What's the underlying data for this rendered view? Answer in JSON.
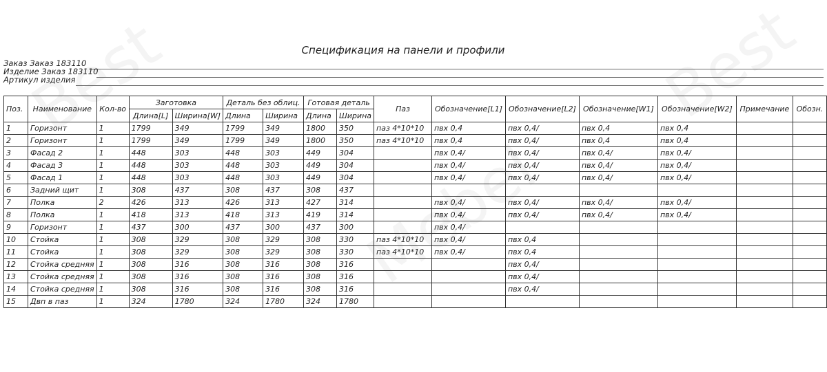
{
  "title": "Спецификация на панели и профили",
  "meta": {
    "order": "Заказ Заказ 183110",
    "product": "Изделие Заказ 183110",
    "article": "Артикул изделия"
  },
  "watermark": "BestMebel мебель по вашим идеям",
  "headers": {
    "pos": "Поз.",
    "name": "Наименование",
    "qty": "Кол-во",
    "blank": "Заготовка",
    "blank_len": "Длина[L]",
    "blank_wid": "Ширина[W]",
    "detail": "Деталь без облиц.",
    "detail_len": "Длина",
    "detail_wid": "Ширина",
    "finished": "Готовая деталь",
    "fin_len": "Длина",
    "fin_wid": "Ширина",
    "groove": "Паз",
    "l1": "Обозначение[L1]",
    "l2": "Обозначение[L2]",
    "w1": "Обозначение[W1]",
    "w2": "Обозначение[W2]",
    "note": "Примечание",
    "desig": "Обозн."
  },
  "rows": [
    [
      "1",
      "Горизонт",
      "1",
      "1799",
      "349",
      "1799",
      "349",
      "1800",
      "350",
      "паз 4*10*10",
      "пвх 0,4",
      "пвх 0,4/",
      "пвх 0,4",
      "пвх 0,4",
      "",
      ""
    ],
    [
      "2",
      "Горизонт",
      "1",
      "1799",
      "349",
      "1799",
      "349",
      "1800",
      "350",
      "паз 4*10*10",
      "пвх 0,4",
      "пвх 0,4/",
      "пвх 0,4",
      "пвх 0,4",
      "",
      ""
    ],
    [
      "3",
      "Фасад 2",
      "1",
      "448",
      "303",
      "448",
      "303",
      "449",
      "304",
      "",
      "пвх 0,4/",
      "пвх 0,4/",
      "пвх 0,4/",
      "пвх 0,4/",
      "",
      ""
    ],
    [
      "4",
      "Фасад 3",
      "1",
      "448",
      "303",
      "448",
      "303",
      "449",
      "304",
      "",
      "пвх 0,4/",
      "пвх 0,4/",
      "пвх 0,4/",
      "пвх 0,4/",
      "",
      ""
    ],
    [
      "5",
      "Фасад 1",
      "1",
      "448",
      "303",
      "448",
      "303",
      "449",
      "304",
      "",
      "пвх 0,4/",
      "пвх 0,4/",
      "пвх 0,4/",
      "пвх 0,4/",
      "",
      ""
    ],
    [
      "6",
      "Задний щит",
      "1",
      "308",
      "437",
      "308",
      "437",
      "308",
      "437",
      "",
      "",
      "",
      "",
      "",
      "",
      ""
    ],
    [
      "7",
      "Полка",
      "2",
      "426",
      "313",
      "426",
      "313",
      "427",
      "314",
      "",
      "пвх 0,4/",
      "пвх 0,4/",
      "пвх 0,4/",
      "пвх 0,4/",
      "",
      ""
    ],
    [
      "8",
      "Полка",
      "1",
      "418",
      "313",
      "418",
      "313",
      "419",
      "314",
      "",
      "пвх 0,4/",
      "пвх 0,4/",
      "пвх 0,4/",
      "пвх 0,4/",
      "",
      ""
    ],
    [
      "9",
      "Горизонт",
      "1",
      "437",
      "300",
      "437",
      "300",
      "437",
      "300",
      "",
      "пвх 0,4/",
      "",
      "",
      "",
      "",
      ""
    ],
    [
      "10",
      "Стойка",
      "1",
      "308",
      "329",
      "308",
      "329",
      "308",
      "330",
      "паз 4*10*10",
      "пвх 0,4/",
      "пвх 0,4",
      "",
      "",
      "",
      ""
    ],
    [
      "11",
      "Стойка",
      "1",
      "308",
      "329",
      "308",
      "329",
      "308",
      "330",
      "паз 4*10*10",
      "пвх 0,4/",
      "пвх 0,4",
      "",
      "",
      "",
      ""
    ],
    [
      "12",
      "Стойка средняя",
      "1",
      "308",
      "316",
      "308",
      "316",
      "308",
      "316",
      "",
      "",
      "пвх 0,4/",
      "",
      "",
      "",
      ""
    ],
    [
      "13",
      "Стойка средняя",
      "1",
      "308",
      "316",
      "308",
      "316",
      "308",
      "316",
      "",
      "",
      "пвх 0,4/",
      "",
      "",
      "",
      ""
    ],
    [
      "14",
      "Стойка средняя",
      "1",
      "308",
      "316",
      "308",
      "316",
      "308",
      "316",
      "",
      "",
      "пвх 0,4/",
      "",
      "",
      "",
      ""
    ],
    [
      "15",
      "Двп в паз",
      "1",
      "324",
      "1780",
      "324",
      "1780",
      "324",
      "1780",
      "",
      "",
      "",
      "",
      "",
      "",
      ""
    ]
  ]
}
